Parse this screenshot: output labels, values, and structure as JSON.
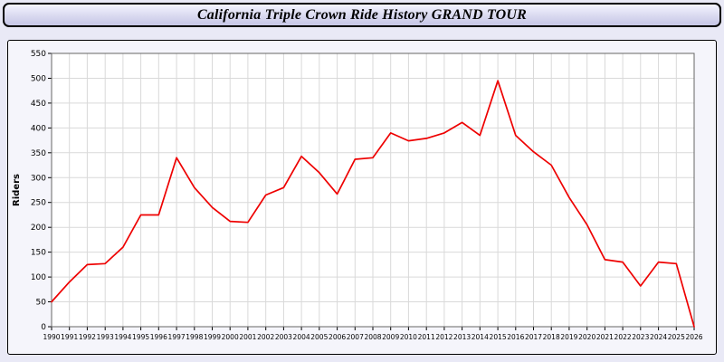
{
  "header": {
    "title": "California Triple Crown Ride History GRAND TOUR"
  },
  "colors": {
    "page_background": "#e9e9f6",
    "header_background": "#d9d9f0",
    "plot_background": "#ffffff",
    "grid": "#d9d9d9",
    "line": "#ee0000",
    "axis_text": "#000000"
  },
  "chart_data": {
    "type": "line",
    "title": "California Triple Crown Ride History GRAND TOUR",
    "xlabel": "",
    "ylabel": "Riders",
    "ylim": [
      0,
      550
    ],
    "ytick_step": 50,
    "grid": true,
    "legend": "none",
    "x": [
      1990,
      1991,
      1992,
      1993,
      1994,
      1995,
      1996,
      1997,
      1998,
      1999,
      2000,
      2001,
      2002,
      2003,
      2004,
      2005,
      2006,
      2007,
      2008,
      2009,
      2010,
      2011,
      2012,
      2013,
      2014,
      2015,
      2016,
      2017,
      2018,
      2019,
      2020,
      2021,
      2022,
      2023,
      2024,
      2025,
      2026
    ],
    "series": [
      {
        "name": "Riders",
        "color": "#ee0000",
        "values": [
          50,
          90,
          125,
          127,
          160,
          225,
          225,
          340,
          280,
          240,
          212,
          210,
          265,
          280,
          343,
          310,
          267,
          337,
          340,
          390,
          374,
          379,
          390,
          411,
          385,
          495,
          385,
          352,
          325,
          260,
          205,
          135,
          130,
          82,
          130,
          127,
          0
        ]
      }
    ]
  }
}
